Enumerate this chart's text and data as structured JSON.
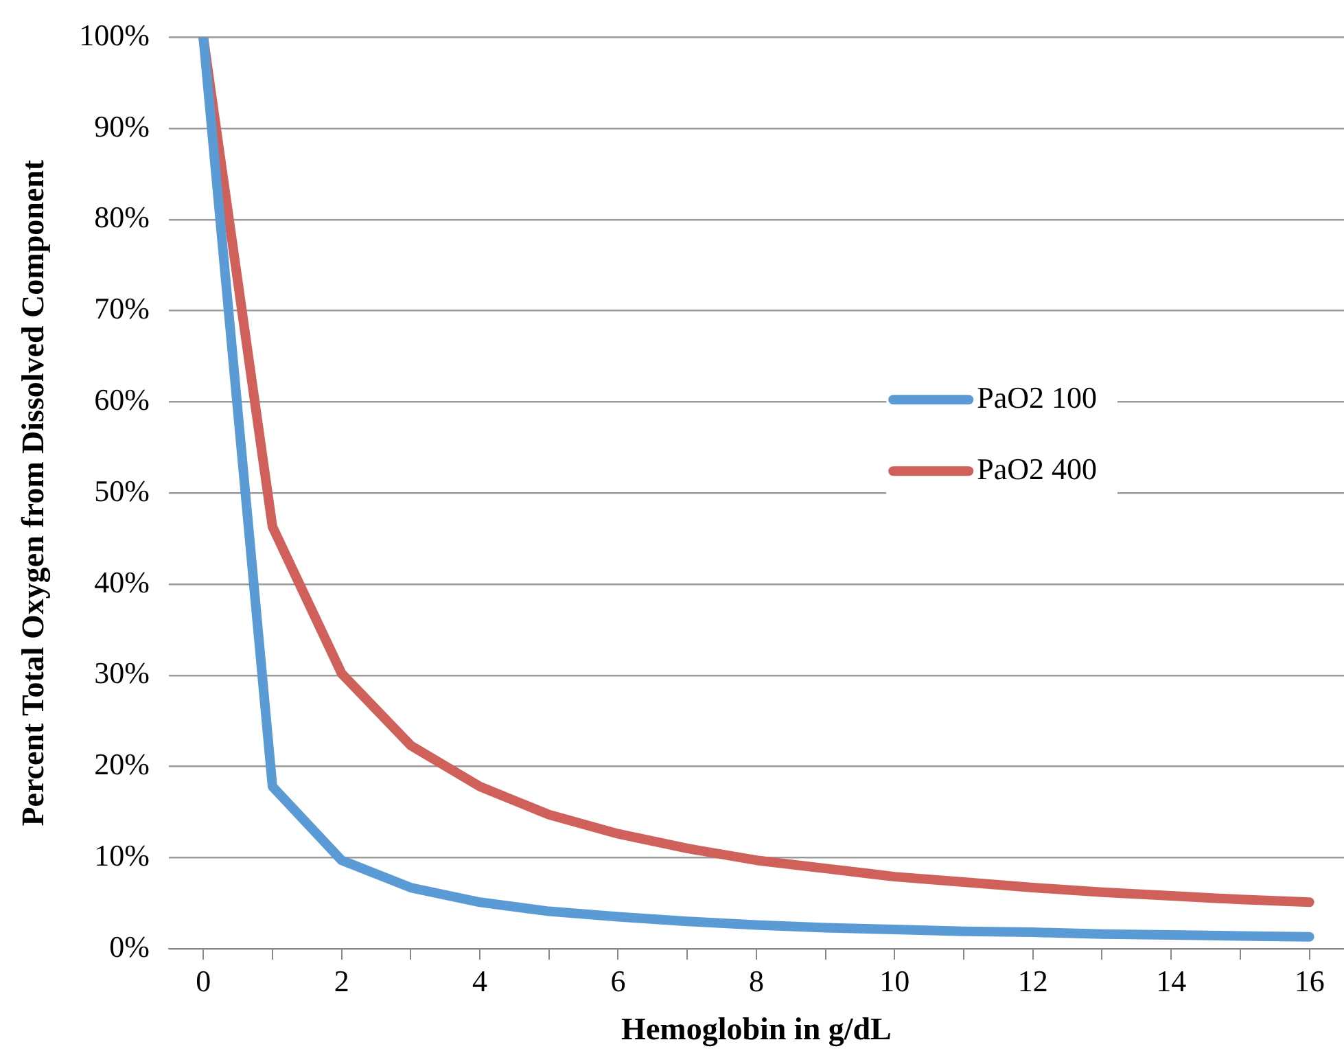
{
  "chart_data": {
    "type": "line",
    "xlabel": "Hemoglobin in g/dL",
    "ylabel": "Percent Total Oxygen from Dissolved Component",
    "x": [
      0,
      1,
      2,
      3,
      4,
      5,
      6,
      7,
      8,
      9,
      10,
      11,
      12,
      13,
      14,
      15,
      16
    ],
    "series": [
      {
        "name": "PaO2 100",
        "color": "#5b9bd5",
        "values": [
          100,
          17.8,
          9.7,
          6.7,
          5.1,
          4.1,
          3.5,
          3.0,
          2.6,
          2.3,
          2.1,
          1.9,
          1.8,
          1.6,
          1.5,
          1.4,
          1.3
        ]
      },
      {
        "name": "PaO2 400",
        "color": "#d0605a",
        "values": [
          100,
          46.3,
          30.2,
          22.3,
          17.8,
          14.7,
          12.6,
          11.0,
          9.7,
          8.8,
          7.9,
          7.3,
          6.7,
          6.2,
          5.8,
          5.4,
          5.1
        ]
      }
    ],
    "xlim": [
      -0.5,
      16.5
    ],
    "xticks": [
      0,
      {
        "value": 1,
        "label": null
      },
      2,
      {
        "value": 3,
        "label": null
      },
      4,
      {
        "value": 5,
        "label": null
      },
      6,
      {
        "value": 7,
        "label": null
      },
      8,
      {
        "value": 9,
        "label": null
      },
      10,
      {
        "value": 11,
        "label": null
      },
      12,
      {
        "value": 13,
        "label": null
      },
      14,
      {
        "value": 15,
        "label": null
      },
      16
    ],
    "ylim": [
      0,
      100
    ],
    "yticks": [
      {
        "value": 0,
        "label": "0%"
      },
      {
        "value": 10,
        "label": "10%"
      },
      {
        "value": 20,
        "label": "20%"
      },
      {
        "value": 30,
        "label": "30%"
      },
      {
        "value": 40,
        "label": "40%"
      },
      {
        "value": 50,
        "label": "50%"
      },
      {
        "value": 60,
        "label": "60%"
      },
      {
        "value": 70,
        "label": "70%"
      },
      {
        "value": 80,
        "label": "80%"
      },
      {
        "value": 90,
        "label": "90%"
      },
      {
        "value": 100,
        "label": "100%"
      }
    ],
    "grid": "y",
    "legend": "right",
    "marker": "none",
    "line_style": "solid"
  }
}
